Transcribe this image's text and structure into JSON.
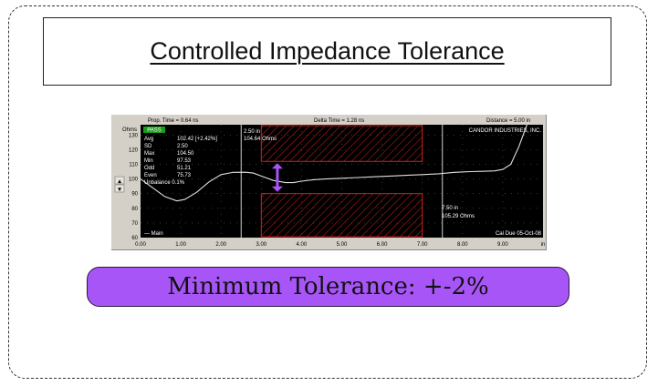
{
  "title": "Controlled Impedance Tolerance",
  "tolerance_label": "Minimum Tolerance: +-2%",
  "scope": {
    "top_bar": {
      "prop_time": "Prop. Time = 0.64 ns",
      "delta_time": "Delta Time = 1.28 ns",
      "distance": "Distance = 5.00 in"
    },
    "y_unit": "Ohms",
    "x_unit": "in",
    "pass_label": "PASS",
    "stats": [
      {
        "label": "Avg",
        "value": "102.42 [+2.42%]"
      },
      {
        "label": "SD",
        "value": "2.50"
      },
      {
        "label": "Max",
        "value": "104.50"
      },
      {
        "label": "Min",
        "value": "97.53"
      },
      {
        "label": "Odd",
        "value": "51.21"
      },
      {
        "label": "Even",
        "value": "75.73"
      }
    ],
    "unbalance": "Unbalance 0.1%",
    "cursor1": {
      "pos": "2.50 in",
      "val": "104.64 Ohms"
    },
    "cursor2": {
      "pos": "7.50 in",
      "val": "105.29 Ohms"
    },
    "company": "CANDOR INDUSTRIES, INC.",
    "cal_due": "Cal Due 05-Oct-08",
    "legend_main": "— Main",
    "spin_up": "▲",
    "spin_down": "▼",
    "colors": {
      "plot_bg": "#000000",
      "trace": "#e0e0e0",
      "band": "#d42020",
      "arrow": "#a855f7",
      "pass": "#1a9c1a",
      "panel": "#d4d0c8"
    }
  },
  "chart_data": {
    "type": "line",
    "x_ticks": [
      "0.00",
      "1.00",
      "2.00",
      "3.00",
      "4.00",
      "5.00",
      "6.00",
      "7.00",
      "8.00",
      "9.00",
      "in"
    ],
    "y_ticks": [
      "60",
      "70",
      "80",
      "90",
      "100",
      "110",
      "120",
      "130"
    ],
    "xlim": [
      0,
      10
    ],
    "ylim": [
      60,
      137
    ],
    "series": [
      {
        "x": [
          0.0,
          0.3,
          0.6,
          0.9,
          1.1,
          1.4,
          1.7,
          2.0,
          2.3,
          2.6,
          2.8,
          3.0,
          3.3,
          3.6,
          3.8,
          4.0,
          4.3,
          4.6,
          5.0,
          5.4,
          5.8,
          6.2,
          6.6,
          7.0,
          7.4,
          7.8,
          8.2,
          8.5,
          8.8,
          9.0,
          9.2,
          9.4,
          9.6
        ],
        "y": [
          100,
          94,
          88,
          85,
          86,
          91,
          98,
          103,
          104.5,
          104.6,
          104,
          102,
          99,
          97.5,
          97.5,
          98.5,
          99.5,
          100,
          100.5,
          101,
          101.5,
          102,
          102.5,
          103,
          103.5,
          104.5,
          105,
          105.2,
          105.5,
          106.5,
          110,
          122,
          137
        ]
      }
    ],
    "tolerance_band": {
      "x_range": [
        3.0,
        7.0
      ],
      "upper_min": 112,
      "lower_max": 90
    },
    "cursors": [
      {
        "x": 2.5
      },
      {
        "x": 7.5
      }
    ],
    "arrow_x": 3.4
  }
}
